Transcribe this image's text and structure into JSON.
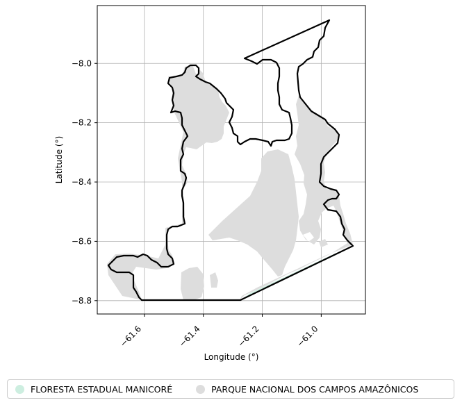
{
  "chart_data": {
    "type": "map",
    "xlabel": "Longitude (°)",
    "ylabel": "Latitude (°)",
    "xlim": [
      -61.76,
      -60.85
    ],
    "ylim": [
      -8.845,
      -7.805
    ],
    "grid": true,
    "xticks": [
      {
        "value": -61.6,
        "label": "−61.6"
      },
      {
        "value": -61.4,
        "label": "−61.4"
      },
      {
        "value": -61.2,
        "label": "−61.2"
      },
      {
        "value": -61.0,
        "label": "−61.0"
      }
    ],
    "yticks": [
      {
        "value": -8.0,
        "label": "−8.0"
      },
      {
        "value": -8.2,
        "label": "−8.2"
      },
      {
        "value": -8.4,
        "label": "−8.4"
      },
      {
        "value": -8.6,
        "label": "−8.6"
      },
      {
        "value": -8.8,
        "label": "−8.8"
      }
    ],
    "legend_position": "bottom",
    "legend": [
      {
        "name": "FLORESTA ESTADUAL MANICORÉ",
        "color": "#cdeee0"
      },
      {
        "name": "PARQUE NACIONAL DOS CAMPOS AMAZÔNICOS",
        "color": "#dddddd"
      }
    ],
    "outline_color": "#000000"
  }
}
